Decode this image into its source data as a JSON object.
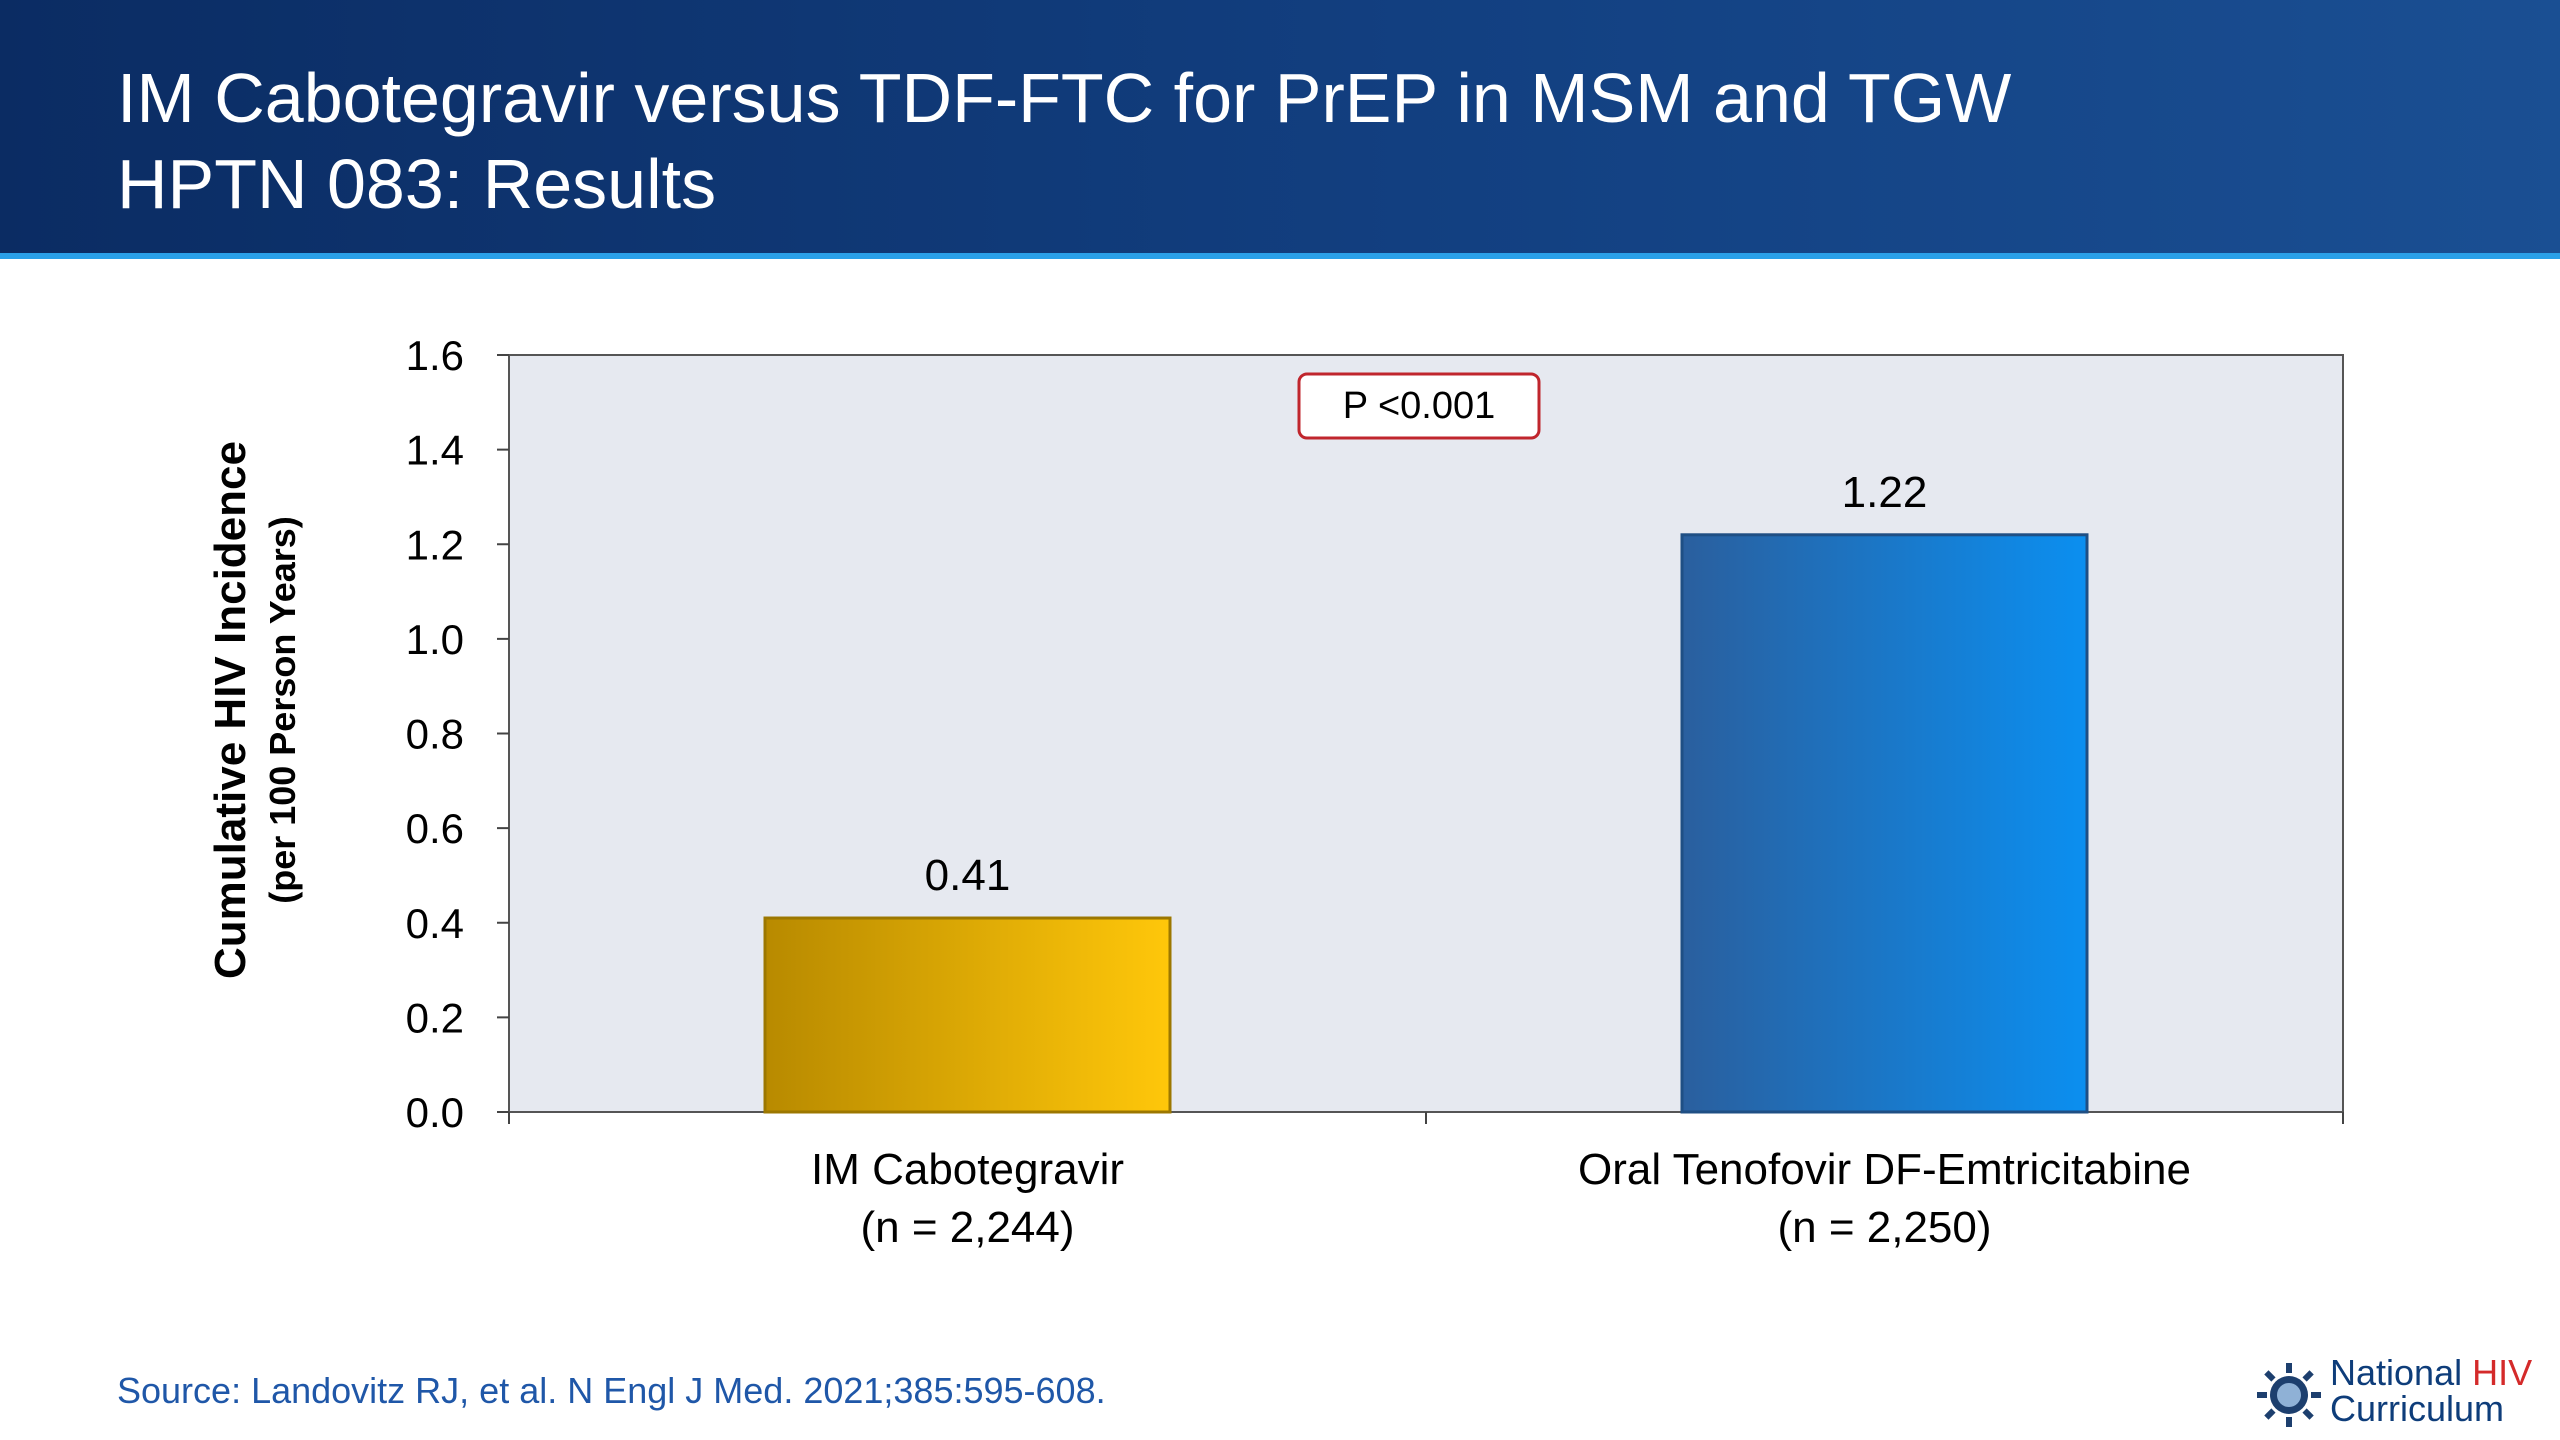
{
  "header": {
    "title_line1": "IM Cabotegravir versus TDF-FTC for PrEP in MSM and TGW",
    "title_line2": "HPTN 083: Results"
  },
  "chart_data": {
    "type": "bar",
    "categories": [
      "IM Cabotegravir",
      "Oral Tenofovir DF-Emtricitabine"
    ],
    "category_sublabels": [
      "(n = 2,244)",
      "(n = 2,250)"
    ],
    "values": [
      0.41,
      1.22
    ],
    "data_labels": [
      "0.41",
      "1.22"
    ],
    "ylabel": "Cumulative HIV Incidence",
    "ylabel_sub": "(per 100 Person Years)",
    "ylim": [
      0,
      1.6
    ],
    "yticks": [
      "0.0",
      "0.2",
      "0.4",
      "0.6",
      "0.8",
      "1.0",
      "1.2",
      "1.4",
      "1.6"
    ],
    "annotation": "P <0.001",
    "grid": false,
    "bar_colors": [
      "#f2b705",
      "#1a84e0"
    ]
  },
  "footer": {
    "source": "Source: Landovitz RJ, et al. N Engl J Med. 2021;385:595-608.",
    "logo_line1_a": "National",
    "logo_line1_b": "HIV",
    "logo_line2": "Curriculum",
    "logo_icon": "gear-sun-icon"
  }
}
